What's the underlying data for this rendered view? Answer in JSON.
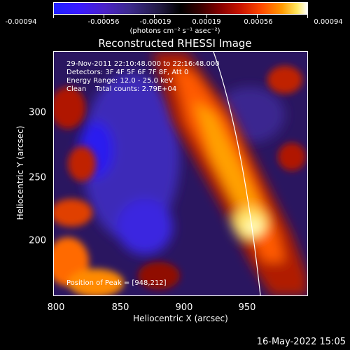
{
  "colorbar": {
    "tick_labels": [
      "-0.00094",
      "-0.00056",
      "-0.00019",
      "0.00019",
      "0.00056",
      "0.00094"
    ],
    "tick_values": [
      -0.00094,
      -0.00056,
      -0.00019,
      0.00019,
      0.00056,
      0.00094
    ],
    "range": [
      -0.00094,
      0.00094
    ],
    "unit": "(photons cm⁻² s⁻¹ asec⁻²)"
  },
  "title": "Reconstructed RHESSI Image",
  "annotations": {
    "time": "29-Nov-2011 22:10:48.000 to 22:16:48.000",
    "detectors": "Detectors: 3F 4F 5F 6F 7F 8F, Att 0",
    "energy": "Energy Range: 12.0 - 25.0 keV",
    "clean": "Clean    Total counts: 2.79E+04",
    "peak": "Position of Peak = [948,212]"
  },
  "axes": {
    "xlabel": "Heliocentric X (arcsec)",
    "ylabel": "Heliocentric Y (arcsec)",
    "xlim": [
      800,
      990
    ],
    "ylim": [
      155,
      340
    ],
    "xticks": [
      "800",
      "850",
      "900",
      "950"
    ],
    "xtick_values": [
      800,
      850,
      900,
      950
    ],
    "yticks": [
      "200",
      "250",
      "300"
    ],
    "ytick_values": [
      200,
      250,
      300
    ]
  },
  "footer": "16-May-2022 15:05"
}
